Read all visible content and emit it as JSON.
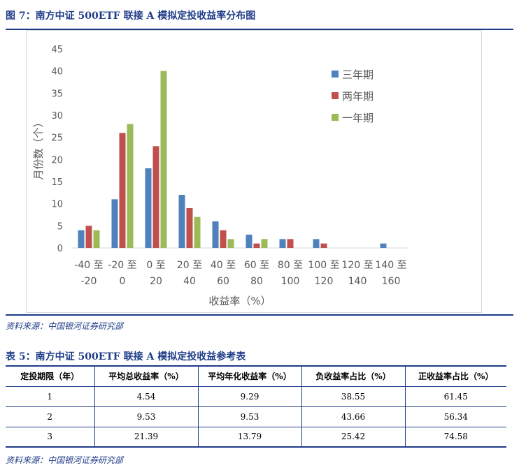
{
  "figure": {
    "title": "图 7：南方中证 500ETF 联接 A 模拟定投收益率分布图",
    "source": "资料来源：中国银河证券研究部"
  },
  "colors": {
    "accent": "#1f3c88",
    "three_year": "#4f81bd",
    "two_year": "#c0504d",
    "one_year": "#9bbb59"
  },
  "chart_data": {
    "type": "bar",
    "xlabel": "收益率（%）",
    "ylabel": "月份数（个）",
    "ylim": [
      0,
      45
    ],
    "yticks": [
      0,
      5,
      10,
      15,
      20,
      25,
      30,
      35,
      40,
      45
    ],
    "categories": [
      [
        "-40 至",
        "-20"
      ],
      [
        "-20 至",
        "0"
      ],
      [
        "0 至",
        "20"
      ],
      [
        "20 至",
        "40"
      ],
      [
        "40 至",
        "60"
      ],
      [
        "60 至",
        "80"
      ],
      [
        "80 至",
        "100"
      ],
      [
        "100 至",
        "120"
      ],
      [
        "120 至",
        "140"
      ],
      [
        "140 至",
        "160"
      ]
    ],
    "legend_position": "right",
    "grid": false,
    "series": [
      {
        "name": "三年期",
        "color": "#4f81bd",
        "values": [
          4,
          11,
          18,
          12,
          6,
          3,
          2,
          2,
          0,
          1
        ]
      },
      {
        "name": "两年期",
        "color": "#c0504d",
        "values": [
          5,
          26,
          23,
          9,
          4,
          1,
          2,
          1,
          0,
          0
        ]
      },
      {
        "name": "一年期",
        "color": "#9bbb59",
        "values": [
          4,
          28,
          40,
          7,
          2,
          2,
          0,
          0,
          0,
          0
        ]
      }
    ]
  },
  "table": {
    "title": "表 5：南方中证 500ETF 联接 A 模拟定投收益参考表",
    "headers": [
      "定投期限（年）",
      "平均总收益率（%）",
      "平均年化收益率（%）",
      "负收益率占比（%）",
      "正收益率占比（%）"
    ],
    "rows": [
      [
        "1",
        "4.54",
        "9.29",
        "38.55",
        "61.45"
      ],
      [
        "2",
        "9.53",
        "9.53",
        "43.66",
        "56.34"
      ],
      [
        "3",
        "21.39",
        "13.79",
        "25.42",
        "74.58"
      ]
    ],
    "source": "资料来源：中国银河证券研究部"
  }
}
